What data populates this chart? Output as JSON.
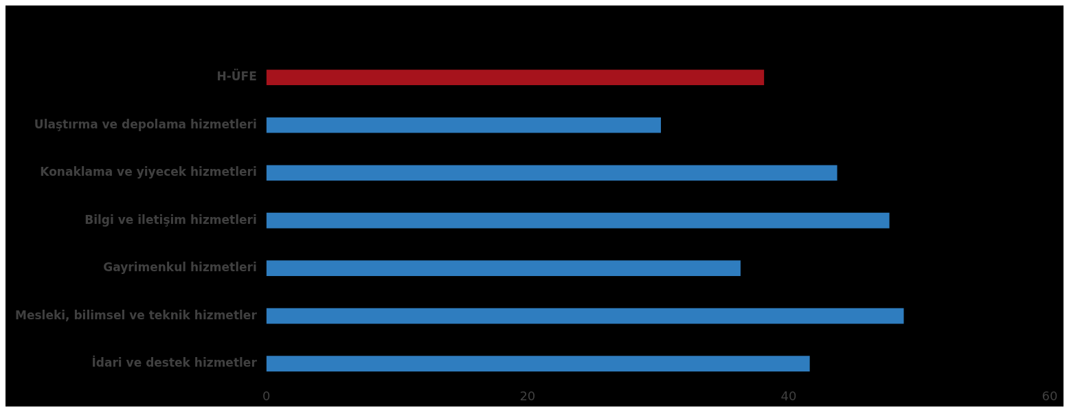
{
  "chart_data": {
    "type": "bar",
    "orientation": "horizontal",
    "categories": [
      "H-ÜFE",
      "Ulaştırma ve depolama hizmetleri",
      "Konaklama ve yiyecek hizmetleri",
      "Bilgi ve iletişim hizmetleri",
      "Gayrimenkul hizmetleri",
      "Mesleki, bilimsel ve teknik hizmetler",
      "İdari ve destek hizmetler"
    ],
    "values": [
      38.1,
      30.2,
      43.7,
      47.7,
      36.3,
      48.8,
      41.6
    ],
    "colors": [
      "#a6131c",
      "#2f7dbf",
      "#2f7dbf",
      "#2f7dbf",
      "#2f7dbf",
      "#2f7dbf",
      "#2f7dbf"
    ],
    "xlim": [
      0,
      60
    ],
    "xticks": [
      0,
      20,
      40,
      60
    ],
    "grid": false
  }
}
